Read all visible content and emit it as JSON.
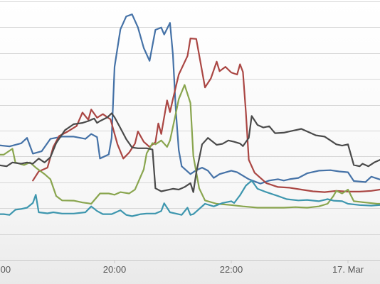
{
  "chart_data": {
    "type": "line",
    "x_unit": "hours (clock time; 24 = 00:00 on 17. Mar)",
    "x_range": [
      18.0,
      24.7
    ],
    "y_range": [
      0,
      100
    ],
    "y_ticks": [
      0,
      10,
      20,
      30,
      40,
      50,
      60,
      70,
      80,
      90,
      100
    ],
    "grid": true,
    "legend": "none",
    "x_tick_labels": [
      {
        "x": 18.0,
        "label": ":00"
      },
      {
        "x": 20.0,
        "label": "20:00"
      },
      {
        "x": 22.0,
        "label": "22:00"
      },
      {
        "x": 24.0,
        "label": "17. Mar"
      }
    ],
    "series": [
      {
        "color": "#4572a7",
        "points": [
          [
            18.0,
            44.4
          ],
          [
            18.2,
            43.9
          ],
          [
            18.4,
            45.1
          ],
          [
            18.5,
            47.2
          ],
          [
            18.6,
            41.1
          ],
          [
            18.75,
            42.0
          ],
          [
            18.9,
            46.8
          ],
          [
            19.1,
            47.7
          ],
          [
            19.3,
            47.7
          ],
          [
            19.5,
            46.8
          ],
          [
            19.6,
            48.7
          ],
          [
            19.7,
            47.5
          ],
          [
            19.75,
            39.2
          ],
          [
            19.9,
            40.8
          ],
          [
            19.95,
            47.2
          ],
          [
            20.0,
            74.7
          ],
          [
            20.1,
            89.2
          ],
          [
            20.2,
            94.2
          ],
          [
            20.3,
            95.0
          ],
          [
            20.4,
            90.0
          ],
          [
            20.5,
            82.0
          ],
          [
            20.6,
            77.0
          ],
          [
            20.7,
            89.0
          ],
          [
            20.8,
            89.9
          ],
          [
            20.85,
            87.2
          ],
          [
            20.95,
            91.7
          ],
          [
            21.0,
            79.4
          ],
          [
            21.05,
            57.8
          ],
          [
            21.1,
            42.5
          ],
          [
            21.15,
            36.2
          ],
          [
            21.3,
            33.2
          ],
          [
            21.4,
            34.7
          ],
          [
            21.5,
            35.7
          ],
          [
            21.6,
            34.5
          ],
          [
            21.7,
            31.7
          ],
          [
            21.8,
            33.2
          ],
          [
            22.0,
            34.5
          ],
          [
            22.1,
            33.9
          ],
          [
            22.3,
            31.2
          ],
          [
            22.5,
            29.5
          ],
          [
            22.65,
            30.7
          ],
          [
            22.8,
            31.2
          ],
          [
            22.9,
            30.7
          ],
          [
            23.0,
            31.2
          ],
          [
            23.15,
            31.7
          ],
          [
            23.3,
            33.5
          ],
          [
            23.5,
            34.5
          ],
          [
            23.7,
            34.7
          ],
          [
            23.85,
            34.2
          ],
          [
            24.0,
            33.9
          ],
          [
            24.1,
            30.5
          ],
          [
            24.3,
            30.1
          ],
          [
            24.4,
            32.2
          ],
          [
            24.55,
            31.1
          ],
          [
            24.7,
            31.7
          ]
        ]
      },
      {
        "color": "#aa4643",
        "points": [
          [
            18.6,
            30.7
          ],
          [
            18.7,
            34.2
          ],
          [
            18.85,
            35.7
          ],
          [
            18.95,
            43.7
          ],
          [
            19.05,
            47.9
          ],
          [
            19.2,
            49.7
          ],
          [
            19.35,
            51.8
          ],
          [
            19.45,
            57.0
          ],
          [
            19.55,
            54.2
          ],
          [
            19.6,
            58.2
          ],
          [
            19.7,
            55.0
          ],
          [
            19.8,
            56.4
          ],
          [
            19.88,
            55.1
          ],
          [
            19.93,
            54.4
          ],
          [
            20.05,
            44.7
          ],
          [
            20.15,
            39.2
          ],
          [
            20.25,
            41.5
          ],
          [
            20.35,
            45.0
          ],
          [
            20.4,
            49.7
          ],
          [
            20.5,
            45.7
          ],
          [
            20.6,
            43.7
          ],
          [
            20.7,
            45.5
          ],
          [
            20.75,
            52.8
          ],
          [
            20.8,
            48.7
          ],
          [
            20.9,
            61.7
          ],
          [
            20.95,
            57.2
          ],
          [
            21.0,
            62.2
          ],
          [
            21.1,
            71.7
          ],
          [
            21.25,
            78.9
          ],
          [
            21.3,
            85.7
          ],
          [
            21.4,
            85.5
          ],
          [
            21.55,
            66.7
          ],
          [
            21.65,
            70.2
          ],
          [
            21.75,
            76.7
          ],
          [
            21.8,
            73.0
          ],
          [
            21.9,
            74.7
          ],
          [
            22.0,
            72.5
          ],
          [
            22.1,
            71.7
          ],
          [
            22.15,
            75.7
          ],
          [
            22.2,
            72.7
          ],
          [
            22.25,
            57.2
          ],
          [
            22.3,
            38.7
          ],
          [
            22.4,
            33.7
          ],
          [
            22.6,
            29.7
          ],
          [
            22.8,
            28.2
          ],
          [
            23.0,
            27.9
          ],
          [
            23.2,
            27.2
          ],
          [
            23.4,
            26.5
          ],
          [
            23.6,
            26.2
          ],
          [
            23.8,
            26.7
          ],
          [
            24.0,
            26.4
          ],
          [
            24.2,
            26.4
          ],
          [
            24.4,
            26.7
          ],
          [
            24.55,
            27.2
          ],
          [
            24.7,
            26.2
          ]
        ]
      },
      {
        "color": "#89a54e",
        "points": [
          [
            18.0,
            40.7
          ],
          [
            18.1,
            40.7
          ],
          [
            18.25,
            43.0
          ],
          [
            18.3,
            37.7
          ],
          [
            18.45,
            36.7
          ],
          [
            18.55,
            37.7
          ],
          [
            18.65,
            35.7
          ],
          [
            18.8,
            33.2
          ],
          [
            18.9,
            31.2
          ],
          [
            19.0,
            24.7
          ],
          [
            19.1,
            23.0
          ],
          [
            19.3,
            22.9
          ],
          [
            19.45,
            22.2
          ],
          [
            19.55,
            21.9
          ],
          [
            19.6,
            21.7
          ],
          [
            19.75,
            25.7
          ],
          [
            19.9,
            25.7
          ],
          [
            20.0,
            25.2
          ],
          [
            20.1,
            26.2
          ],
          [
            20.25,
            25.7
          ],
          [
            20.35,
            27.2
          ],
          [
            20.5,
            35.0
          ],
          [
            20.55,
            41.2
          ],
          [
            20.65,
            45.2
          ],
          [
            20.7,
            44.7
          ],
          [
            20.8,
            46.2
          ],
          [
            20.9,
            43.7
          ],
          [
            20.95,
            46.2
          ],
          [
            21.05,
            56.7
          ],
          [
            21.1,
            62.2
          ],
          [
            21.2,
            67.7
          ],
          [
            21.3,
            60.7
          ],
          [
            21.35,
            40.2
          ],
          [
            21.45,
            27.7
          ],
          [
            21.55,
            23.0
          ],
          [
            21.75,
            21.7
          ],
          [
            22.0,
            21.2
          ],
          [
            22.2,
            20.7
          ],
          [
            22.45,
            20.2
          ],
          [
            22.7,
            20.2
          ],
          [
            22.9,
            20.2
          ],
          [
            23.1,
            20.4
          ],
          [
            23.3,
            20.2
          ],
          [
            23.5,
            20.7
          ],
          [
            23.65,
            21.7
          ],
          [
            23.75,
            24.7
          ],
          [
            23.8,
            26.7
          ],
          [
            23.9,
            25.7
          ],
          [
            24.0,
            27.2
          ],
          [
            24.1,
            22.7
          ],
          [
            24.3,
            22.2
          ],
          [
            24.5,
            21.7
          ],
          [
            24.7,
            21.7
          ]
        ]
      },
      {
        "color": "#3d96ae",
        "points": [
          [
            18.0,
            17.7
          ],
          [
            18.1,
            17.7
          ],
          [
            18.2,
            17.4
          ],
          [
            18.3,
            19.4
          ],
          [
            18.4,
            19.7
          ],
          [
            18.5,
            20.2
          ],
          [
            18.6,
            22.0
          ],
          [
            18.65,
            25.2
          ],
          [
            18.7,
            18.4
          ],
          [
            18.85,
            18.0
          ],
          [
            18.95,
            18.4
          ],
          [
            19.1,
            17.9
          ],
          [
            19.3,
            17.9
          ],
          [
            19.5,
            18.4
          ],
          [
            19.6,
            20.7
          ],
          [
            19.7,
            18.9
          ],
          [
            19.8,
            17.7
          ],
          [
            19.95,
            17.7
          ],
          [
            20.1,
            19.2
          ],
          [
            20.2,
            17.4
          ],
          [
            20.3,
            16.9
          ],
          [
            20.45,
            17.7
          ],
          [
            20.55,
            17.9
          ],
          [
            20.7,
            17.9
          ],
          [
            20.8,
            18.9
          ],
          [
            20.85,
            21.9
          ],
          [
            20.95,
            18.4
          ],
          [
            21.05,
            17.9
          ],
          [
            21.15,
            17.4
          ],
          [
            21.25,
            20.2
          ],
          [
            21.3,
            17.4
          ],
          [
            21.35,
            17.7
          ],
          [
            21.45,
            19.7
          ],
          [
            21.55,
            21.7
          ],
          [
            21.7,
            20.7
          ],
          [
            21.85,
            22.0
          ],
          [
            22.0,
            22.7
          ],
          [
            22.05,
            22.0
          ],
          [
            22.15,
            25.0
          ],
          [
            22.25,
            28.7
          ],
          [
            22.35,
            30.7
          ],
          [
            22.45,
            27.5
          ],
          [
            22.6,
            26.2
          ],
          [
            22.8,
            24.7
          ],
          [
            22.95,
            23.5
          ],
          [
            23.15,
            23.0
          ],
          [
            23.3,
            23.2
          ],
          [
            23.5,
            22.7
          ],
          [
            23.65,
            23.5
          ],
          [
            23.75,
            22.9
          ],
          [
            23.9,
            22.7
          ],
          [
            24.0,
            21.7
          ],
          [
            24.2,
            21.2
          ],
          [
            24.4,
            21.0
          ],
          [
            24.55,
            21.2
          ],
          [
            24.7,
            21.0
          ]
        ]
      },
      {
        "color": "#4a4a4a",
        "points": [
          [
            18.0,
            36.7
          ],
          [
            18.15,
            36.2
          ],
          [
            18.25,
            37.7
          ],
          [
            18.4,
            37.2
          ],
          [
            18.5,
            37.7
          ],
          [
            18.6,
            37.2
          ],
          [
            18.7,
            39.2
          ],
          [
            18.8,
            37.7
          ],
          [
            18.9,
            39.7
          ],
          [
            19.0,
            45.2
          ],
          [
            19.15,
            50.2
          ],
          [
            19.3,
            52.5
          ],
          [
            19.45,
            53.0
          ],
          [
            19.55,
            53.7
          ],
          [
            19.65,
            54.7
          ],
          [
            19.7,
            53.0
          ],
          [
            19.75,
            53.7
          ],
          [
            19.88,
            55.2
          ],
          [
            19.95,
            56.7
          ],
          [
            20.0,
            55.2
          ],
          [
            20.1,
            51.0
          ],
          [
            20.2,
            46.7
          ],
          [
            20.3,
            43.5
          ],
          [
            20.4,
            43.2
          ],
          [
            20.55,
            43.2
          ],
          [
            20.65,
            42.7
          ],
          [
            20.7,
            27.7
          ],
          [
            20.8,
            26.5
          ],
          [
            20.9,
            27.0
          ],
          [
            21.0,
            27.5
          ],
          [
            21.1,
            27.2
          ],
          [
            21.2,
            28.2
          ],
          [
            21.3,
            29.7
          ],
          [
            21.35,
            26.2
          ],
          [
            21.4,
            33.7
          ],
          [
            21.5,
            44.7
          ],
          [
            21.6,
            47.2
          ],
          [
            21.75,
            44.5
          ],
          [
            21.85,
            44.9
          ],
          [
            21.95,
            46.2
          ],
          [
            22.05,
            45.7
          ],
          [
            22.15,
            45.0
          ],
          [
            22.2,
            44.0
          ],
          [
            22.3,
            47.2
          ],
          [
            22.35,
            55.7
          ],
          [
            22.45,
            52.2
          ],
          [
            22.55,
            51.2
          ],
          [
            22.65,
            51.7
          ],
          [
            22.75,
            49.0
          ],
          [
            22.9,
            49.2
          ],
          [
            23.0,
            49.7
          ],
          [
            23.1,
            50.2
          ],
          [
            23.2,
            50.7
          ],
          [
            23.3,
            49.7
          ],
          [
            23.45,
            48.2
          ],
          [
            23.6,
            47.7
          ],
          [
            23.7,
            46.2
          ],
          [
            23.8,
            44.7
          ],
          [
            23.9,
            44.2
          ],
          [
            24.0,
            44.7
          ],
          [
            24.1,
            36.7
          ],
          [
            24.2,
            36.2
          ],
          [
            24.25,
            37.2
          ],
          [
            24.35,
            36.2
          ],
          [
            24.45,
            37.7
          ],
          [
            24.55,
            38.7
          ],
          [
            24.6,
            37.7
          ],
          [
            24.7,
            36.2
          ]
        ]
      }
    ]
  }
}
